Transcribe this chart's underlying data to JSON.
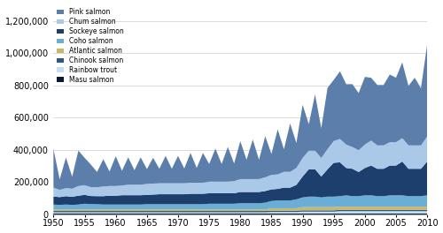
{
  "years": [
    1950,
    1951,
    1952,
    1953,
    1954,
    1955,
    1956,
    1957,
    1958,
    1959,
    1960,
    1961,
    1962,
    1963,
    1964,
    1965,
    1966,
    1967,
    1968,
    1969,
    1970,
    1971,
    1972,
    1973,
    1974,
    1975,
    1976,
    1977,
    1978,
    1979,
    1980,
    1981,
    1982,
    1983,
    1984,
    1985,
    1986,
    1987,
    1988,
    1989,
    1990,
    1991,
    1992,
    1993,
    1994,
    1995,
    1996,
    1997,
    1998,
    1999,
    2000,
    2001,
    2002,
    2003,
    2004,
    2005,
    2006,
    2007,
    2008,
    2009,
    2010
  ],
  "series": {
    "Masu salmon": [
      5000,
      5000,
      5000,
      5000,
      5000,
      5000,
      5000,
      5000,
      5000,
      5000,
      5000,
      5000,
      5000,
      5000,
      5000,
      5000,
      5000,
      5000,
      5000,
      5000,
      5000,
      5000,
      5000,
      5000,
      5000,
      5000,
      5000,
      5000,
      5000,
      5000,
      5000,
      5000,
      5000,
      5000,
      5000,
      5000,
      5000,
      5000,
      5000,
      5000,
      5000,
      5000,
      5000,
      5000,
      5000,
      5000,
      5000,
      5000,
      5000,
      5000,
      5000,
      5000,
      5000,
      5000,
      5000,
      5000,
      5000,
      5000,
      5000,
      5000,
      5000
    ],
    "Rainbow trout": [
      8000,
      8000,
      8000,
      8000,
      8000,
      8000,
      8000,
      8000,
      8000,
      8000,
      8000,
      8000,
      8000,
      8000,
      8000,
      8000,
      8000,
      8000,
      8000,
      8000,
      8000,
      8000,
      8000,
      8000,
      8000,
      8000,
      8000,
      8000,
      8000,
      8000,
      8000,
      8000,
      8000,
      8000,
      8000,
      10000,
      10000,
      10000,
      10000,
      10000,
      12000,
      12000,
      12000,
      12000,
      12000,
      12000,
      15000,
      15000,
      15000,
      15000,
      15000,
      15000,
      15000,
      15000,
      15000,
      15000,
      15000,
      15000,
      15000,
      15000,
      15000
    ],
    "Chinook salmon": [
      8000,
      8000,
      8000,
      8000,
      8000,
      8000,
      8000,
      8000,
      8000,
      8000,
      8000,
      8000,
      8000,
      8000,
      8000,
      8000,
      8000,
      8000,
      8000,
      8000,
      8000,
      8000,
      8000,
      8000,
      8000,
      8000,
      8000,
      8000,
      8000,
      8000,
      8000,
      8000,
      8000,
      8000,
      8000,
      8000,
      8000,
      8000,
      8000,
      8000,
      8000,
      8000,
      8000,
      8000,
      8000,
      8000,
      8000,
      8000,
      8000,
      8000,
      8000,
      8000,
      8000,
      8000,
      8000,
      8000,
      8000,
      8000,
      8000,
      8000,
      8000
    ],
    "Atlantic salmon": [
      10000,
      10000,
      10000,
      10000,
      10000,
      10000,
      10000,
      10000,
      10000,
      10000,
      10000,
      10000,
      10000,
      10000,
      10000,
      10000,
      10000,
      10000,
      10000,
      10000,
      10000,
      10000,
      10000,
      10000,
      10000,
      10000,
      10000,
      10000,
      10000,
      10000,
      10000,
      10000,
      10000,
      10000,
      10000,
      15000,
      15000,
      15000,
      15000,
      15000,
      20000,
      20000,
      20000,
      20000,
      20000,
      20000,
      20000,
      20000,
      20000,
      20000,
      20000,
      20000,
      20000,
      20000,
      20000,
      20000,
      20000,
      20000,
      20000,
      20000,
      20000
    ],
    "Coho salmon": [
      30000,
      28000,
      30000,
      28000,
      30000,
      35000,
      33000,
      32000,
      30000,
      30000,
      30000,
      30000,
      30000,
      30000,
      30000,
      32000,
      32000,
      32000,
      32000,
      32000,
      32000,
      32000,
      32000,
      32000,
      32000,
      35000,
      35000,
      35000,
      35000,
      35000,
      38000,
      38000,
      38000,
      38000,
      42000,
      45000,
      48000,
      48000,
      48000,
      55000,
      60000,
      65000,
      65000,
      60000,
      65000,
      65000,
      65000,
      70000,
      65000,
      65000,
      70000,
      70000,
      65000,
      65000,
      70000,
      70000,
      70000,
      65000,
      65000,
      65000,
      70000
    ],
    "Sockeye salmon": [
      50000,
      48000,
      52000,
      50000,
      55000,
      55000,
      50000,
      50000,
      52000,
      55000,
      55000,
      58000,
      58000,
      58000,
      58000,
      58000,
      60000,
      62000,
      62000,
      62000,
      62000,
      62000,
      65000,
      65000,
      65000,
      65000,
      65000,
      65000,
      65000,
      65000,
      70000,
      70000,
      70000,
      70000,
      72000,
      72000,
      72000,
      80000,
      80000,
      90000,
      130000,
      170000,
      170000,
      130000,
      170000,
      210000,
      210000,
      170000,
      170000,
      150000,
      170000,
      185000,
      170000,
      170000,
      185000,
      185000,
      210000,
      170000,
      170000,
      170000,
      210000
    ],
    "Chum salmon": [
      55000,
      45000,
      50000,
      50000,
      60000,
      60000,
      55000,
      55000,
      60000,
      60000,
      60000,
      60000,
      65000,
      65000,
      65000,
      68000,
      68000,
      68000,
      68000,
      68000,
      68000,
      68000,
      68000,
      68000,
      68000,
      72000,
      72000,
      72000,
      72000,
      75000,
      80000,
      80000,
      80000,
      80000,
      85000,
      90000,
      90000,
      98000,
      98000,
      105000,
      115000,
      115000,
      115000,
      115000,
      125000,
      135000,
      145000,
      145000,
      135000,
      135000,
      145000,
      155000,
      145000,
      145000,
      145000,
      145000,
      145000,
      145000,
      145000,
      145000,
      155000
    ],
    "Pink salmon": [
      240000,
      65000,
      190000,
      75000,
      220000,
      170000,
      140000,
      95000,
      170000,
      90000,
      185000,
      92000,
      170000,
      90000,
      170000,
      92000,
      160000,
      90000,
      170000,
      90000,
      170000,
      92000,
      185000,
      92000,
      185000,
      110000,
      205000,
      110000,
      215000,
      110000,
      235000,
      120000,
      245000,
      120000,
      255000,
      130000,
      280000,
      140000,
      300000,
      155000,
      330000,
      165000,
      350000,
      185000,
      380000,
      380000,
      420000,
      375000,
      390000,
      355000,
      420000,
      390000,
      375000,
      375000,
      420000,
      400000,
      470000,
      370000,
      420000,
      355000,
      570000
    ]
  },
  "colors": {
    "Pink salmon": "#5b7faa",
    "Chum salmon": "#aac8e8",
    "Sockeye salmon": "#1c3f6e",
    "Coho salmon": "#6aaed6",
    "Atlantic salmon": "#c8b86a",
    "Chinook salmon": "#2a5888",
    "Rainbow trout": "#c5dff0",
    "Masu salmon": "#0a1a2e"
  },
  "ylim": [
    0,
    1300000
  ],
  "yticks": [
    0,
    200000,
    400000,
    600000,
    800000,
    1000000,
    1200000
  ],
  "xlim": [
    1950,
    2010
  ],
  "xticks": [
    1950,
    1955,
    1960,
    1965,
    1970,
    1975,
    1980,
    1985,
    1990,
    1995,
    2000,
    2005,
    2010
  ],
  "background_color": "#ffffff",
  "grid_color": "#cccccc",
  "legend_order": [
    "Pink salmon",
    "Chum salmon",
    "Sockeye salmon",
    "Coho salmon",
    "Atlantic salmon",
    "Chinook salmon",
    "Rainbow trout",
    "Masu salmon"
  ],
  "stack_order": [
    "Masu salmon",
    "Rainbow trout",
    "Chinook salmon",
    "Atlantic salmon",
    "Coho salmon",
    "Sockeye salmon",
    "Chum salmon",
    "Pink salmon"
  ]
}
